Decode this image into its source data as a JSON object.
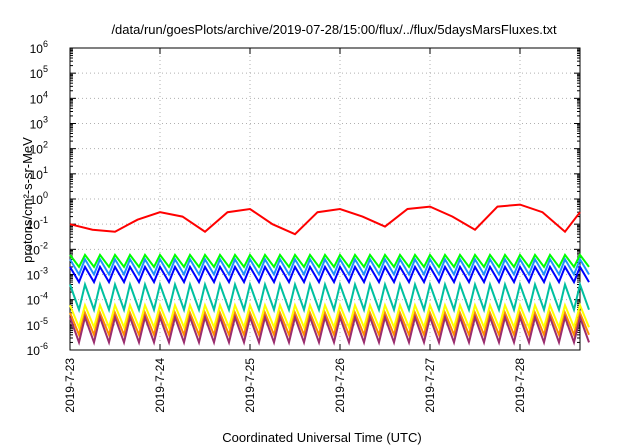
{
  "chart_data": {
    "type": "line",
    "title": "/data/run/goesPlots/archive/2019-07-28/15:00/flux/../flux/5daysMarsFluxes.txt",
    "xlabel": "Coordinated Universal Time (UTC)",
    "ylabel": "protons/cm²-s-sr-MeV",
    "yscale": "log",
    "ylim": [
      1e-06,
      1000000.0
    ],
    "xlim": [
      "2019-07-23",
      "2019-07-28T16:00"
    ],
    "xticks": [
      "2019-7-23",
      "2019-7-24",
      "2019-7-25",
      "2019-7-26",
      "2019-7-27",
      "2019-7-28"
    ],
    "yticks_exp": [
      -6,
      -5,
      -4,
      -3,
      -2,
      -1,
      0,
      1,
      2,
      3,
      4,
      5,
      6
    ],
    "ytick_base": "10",
    "grid": true,
    "legend": "none",
    "series": [
      {
        "color": "#ff0000",
        "x": [
          "2019-07-23T00:00",
          "2019-07-23T06:00",
          "2019-07-23T12:00",
          "2019-07-23T18:00",
          "2019-07-24T00:00",
          "2019-07-24T06:00",
          "2019-07-24T12:00",
          "2019-07-24T18:00",
          "2019-07-25T00:00",
          "2019-07-25T06:00",
          "2019-07-25T12:00",
          "2019-07-25T18:00",
          "2019-07-26T00:00",
          "2019-07-26T06:00",
          "2019-07-26T12:00",
          "2019-07-26T18:00",
          "2019-07-27T00:00",
          "2019-07-27T06:00",
          "2019-07-27T12:00",
          "2019-07-27T18:00",
          "2019-07-28T00:00",
          "2019-07-28T06:00",
          "2019-07-28T12:00",
          "2019-07-28T16:00"
        ],
        "values": [
          0.1,
          0.06,
          0.05,
          0.15,
          0.3,
          0.2,
          0.05,
          0.3,
          0.4,
          0.1,
          0.04,
          0.3,
          0.4,
          0.2,
          0.08,
          0.4,
          0.5,
          0.2,
          0.06,
          0.5,
          0.6,
          0.3,
          0.05,
          0.3
        ]
      },
      {
        "color": "#00ff00",
        "x": [],
        "values": [],
        "band": [
          0.002,
          0.006
        ]
      },
      {
        "color": "#0000ff",
        "x": [],
        "values": [],
        "band": [
          0.0005,
          0.002
        ]
      },
      {
        "color": "#1e90ff",
        "x": [],
        "values": [],
        "band": [
          0.001,
          0.004
        ]
      },
      {
        "color": "#00c0a0",
        "x": [],
        "values": [],
        "band": [
          4e-05,
          0.0004
        ]
      },
      {
        "color": "#ffff00",
        "x": [],
        "values": [],
        "band": [
          8e-06,
          6e-05
        ]
      },
      {
        "color": "#ff8c00",
        "x": [],
        "values": [],
        "band": [
          4e-06,
          3e-05
        ]
      },
      {
        "color": "#9b2d6e",
        "x": [],
        "values": [],
        "band": [
          2e-06,
          2e-05
        ]
      }
    ]
  }
}
